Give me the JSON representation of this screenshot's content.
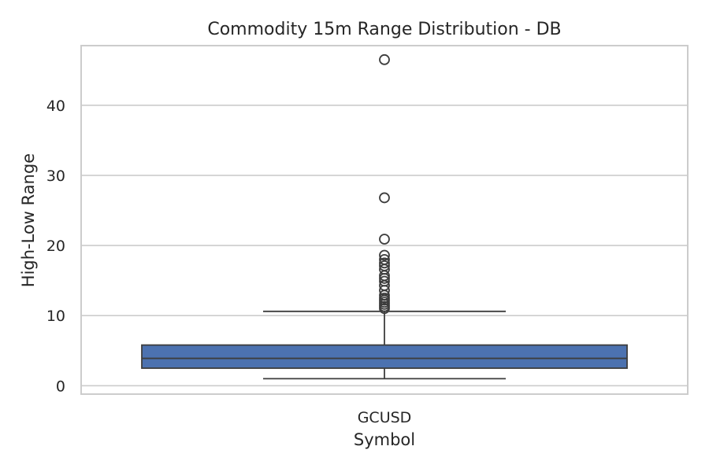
{
  "chart_data": {
    "type": "box",
    "title": "Commodity 15m Range Distribution - DB",
    "xlabel": "Symbol",
    "ylabel": "High-Low Range",
    "categories": [
      "GCUSD"
    ],
    "ylim": [
      -1.2,
      48.5
    ],
    "yticks": [
      0,
      10,
      20,
      30,
      40
    ],
    "grid": "horizontal",
    "box_color": "#4c72b0",
    "line_color": "#3d3d3d",
    "boxes": [
      {
        "category": "GCUSD",
        "whisker_low": 1.0,
        "q1": 2.5,
        "median": 3.9,
        "q3": 5.8,
        "whisker_high": 10.6,
        "outliers": [
          11.0,
          11.3,
          11.6,
          11.9,
          12.2,
          12.5,
          12.9,
          13.6,
          14.3,
          14.9,
          15.3,
          15.7,
          16.6,
          17.1,
          17.5,
          18.0,
          18.6,
          20.9,
          26.8,
          46.5
        ]
      }
    ]
  }
}
